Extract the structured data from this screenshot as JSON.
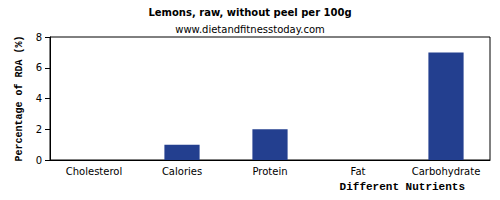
{
  "chart_data": {
    "type": "bar",
    "title": "Lemons, raw, without peel per 100g",
    "subtitle": "www.dietandfitnesstoday.com",
    "x_label": "Different Nutrients",
    "y_label": "Percentage of RDA (%)",
    "categories": [
      "Cholesterol",
      "Calories",
      "Protein",
      "Fat",
      "Carbohydrate"
    ],
    "values": [
      0,
      1,
      2,
      0,
      7
    ],
    "color": "#233f8f",
    "ylim": [
      0,
      8
    ],
    "yticks": [
      0,
      2,
      4,
      6,
      8
    ],
    "grid": false
  }
}
